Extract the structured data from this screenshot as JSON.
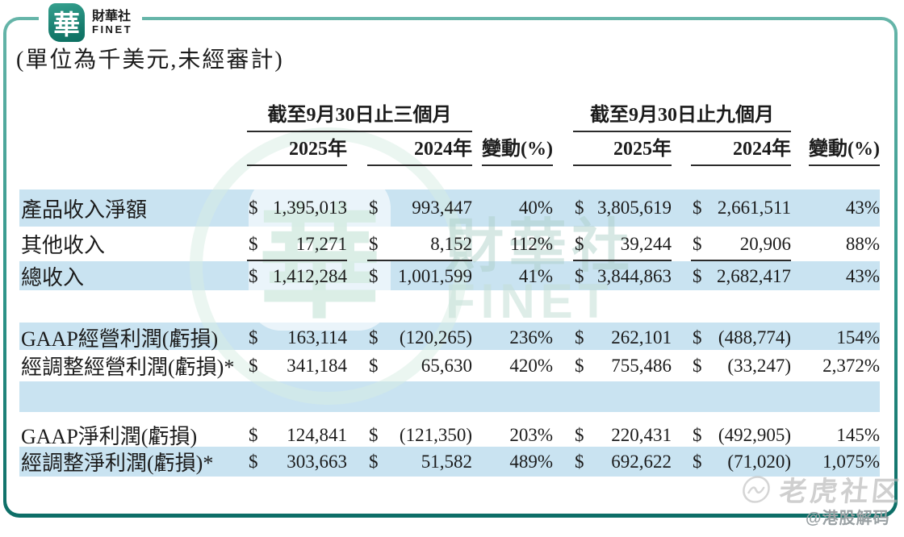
{
  "logo": {
    "seal": "華",
    "zh": "財華社",
    "en": "FINET"
  },
  "note": "(單位為千美元,未經審計)",
  "table": {
    "currency": "$",
    "groups": [
      {
        "title": "截至9月30日止三個月",
        "col_2025": "2025年",
        "col_2024": "2024年",
        "col_change": "變動(%)"
      },
      {
        "title": "截至9月30日止九個月",
        "col_2025": "2025年",
        "col_2024": "2024年",
        "col_change": "變動(%)"
      }
    ],
    "rows": [
      {
        "section": 0,
        "bg": "blue",
        "rule": false,
        "label": "產品收入淨額",
        "q3_2025": "1,395,013",
        "q3_2024": "993,447",
        "q3_change": "40%",
        "m9_2025": "3,805,619",
        "m9_2024": "2,661,511",
        "m9_change": "43%"
      },
      {
        "section": 0,
        "bg": "white",
        "rule": true,
        "label": "其他收入",
        "q3_2025": "17,271",
        "q3_2024": "8,152",
        "q3_change": "112%",
        "m9_2025": "39,244",
        "m9_2024": "20,906",
        "m9_change": "88%"
      },
      {
        "section": 0,
        "bg": "blue",
        "rule": false,
        "label": "總收入",
        "q3_2025": "1,412,284",
        "q3_2024": "1,001,599",
        "q3_change": "41%",
        "m9_2025": "3,844,863",
        "m9_2024": "2,682,417",
        "m9_change": "43%"
      },
      {
        "section": 1,
        "bg": "blue",
        "rule": false,
        "label": "GAAP經營利潤(虧損)",
        "q3_2025": "163,114",
        "q3_2024": "(120,265)",
        "q3_change": "236%",
        "m9_2025": "262,101",
        "m9_2024": "(488,774)",
        "m9_change": "154%"
      },
      {
        "section": 1,
        "bg": "white",
        "rule": false,
        "label": "經調整經營利潤(虧損)*",
        "q3_2025": "341,184",
        "q3_2024": "65,630",
        "q3_change": "420%",
        "m9_2025": "755,486",
        "m9_2024": "(33,247)",
        "m9_change": "2,372%"
      },
      {
        "section": 2,
        "bg": "white",
        "rule": false,
        "label": "GAAP淨利潤(虧損)",
        "q3_2025": "124,841",
        "q3_2024": "(121,350)",
        "q3_change": "203%",
        "m9_2025": "220,431",
        "m9_2024": "(492,905)",
        "m9_change": "145%"
      },
      {
        "section": 2,
        "bg": "blue",
        "rule": false,
        "label": "經調整淨利潤(虧損)*",
        "q3_2025": "303,663",
        "q3_2024": "51,582",
        "q3_change": "489%",
        "m9_2025": "692,622",
        "m9_2024": "(71,020)",
        "m9_change": "1,075%"
      }
    ]
  },
  "watermarks": {
    "center_seal": "華",
    "center_zh": "財華社",
    "center_en": "FINET",
    "bottom_right": "老虎社区",
    "credit": "@港股解码"
  },
  "colors": {
    "accent": "#117d75",
    "row_blue": "#c9e3f1",
    "rule": "#2b2b2b"
  }
}
